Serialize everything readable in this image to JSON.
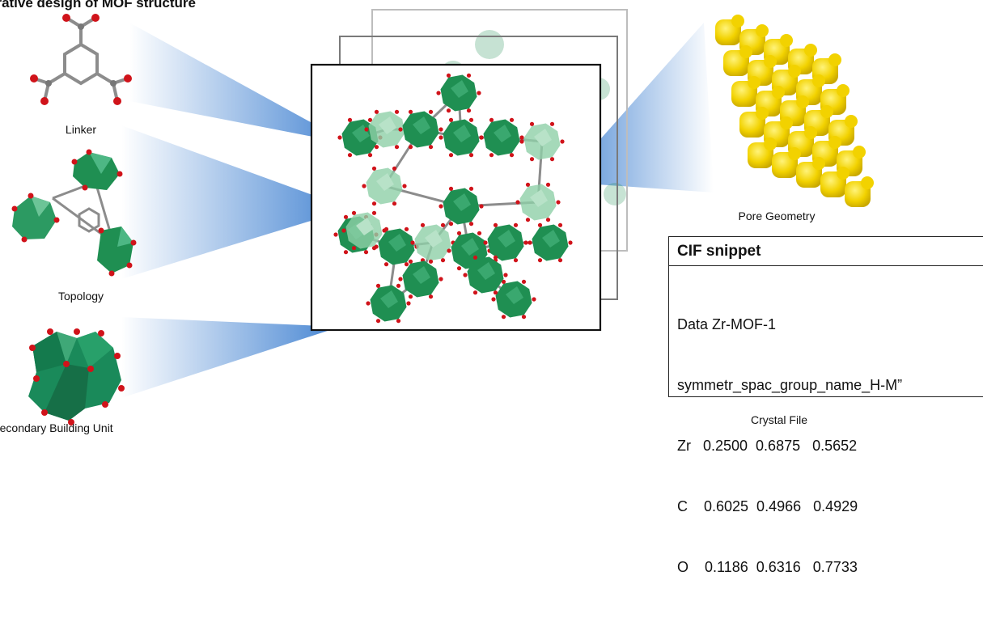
{
  "title": "erative design of MOF structure",
  "captions": {
    "linker": "Linker",
    "topology": "Topology",
    "sbu": "Secondary Building Unit",
    "pore": "Pore Geometry",
    "crystal": "Crystal File"
  },
  "cif": {
    "header": "CIF snippet",
    "lines": [
      "Data Zr-MOF-1",
      "symmetr_spac_group_name_H-M”",
      "Zr   0.2500  0.6875   0.5652",
      "C    0.6025  0.4966   0.4929",
      "O    0.1186  0.6316   0.7733"
    ]
  },
  "colors": {
    "polyhedra": "#1f8f52",
    "polyhedra_light": "#8fcfa8",
    "oxygen": "#d0131a",
    "carbon": "#8c8c8c",
    "pore": "#f2d200",
    "beam": "#3d7fd0"
  }
}
